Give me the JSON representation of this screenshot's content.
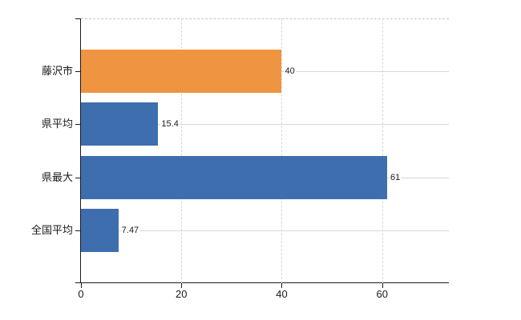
{
  "chart_data": {
    "type": "bar",
    "orientation": "horizontal",
    "title": "",
    "categories": [
      "藤沢市",
      "県平均",
      "県最大",
      "全国平均"
    ],
    "values": [
      40,
      15.4,
      61,
      7.47
    ],
    "value_labels": [
      "40",
      "15.4",
      "61",
      "7.47"
    ],
    "bar_colors": [
      "#EF9440",
      "#3E6EAE",
      "#3E6EAE",
      "#3E6EAE"
    ],
    "x_ticks": [
      0,
      20,
      40,
      60
    ],
    "x_tick_labels": [
      "0",
      "20",
      "40",
      "60"
    ],
    "xlim": [
      0,
      73.3
    ],
    "xlabel": "",
    "ylabel": "",
    "grid": true,
    "legend": "none",
    "colors": {
      "background": "#ffffff",
      "axis": "#1a1a1a",
      "h_gridline": "#d5dad2",
      "v_gridline": "#d7d7d7",
      "top_border": "#c9c9c9",
      "text": "#1a1a1a"
    }
  }
}
